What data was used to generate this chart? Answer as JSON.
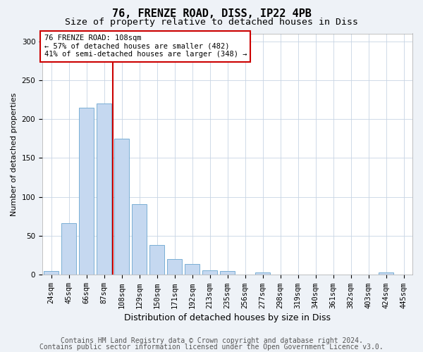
{
  "title1": "76, FRENZE ROAD, DISS, IP22 4PB",
  "title2": "Size of property relative to detached houses in Diss",
  "xlabel": "Distribution of detached houses by size in Diss",
  "ylabel": "Number of detached properties",
  "categories": [
    "24sqm",
    "45sqm",
    "66sqm",
    "87sqm",
    "108sqm",
    "129sqm",
    "150sqm",
    "171sqm",
    "192sqm",
    "213sqm",
    "235sqm",
    "256sqm",
    "277sqm",
    "298sqm",
    "319sqm",
    "340sqm",
    "361sqm",
    "382sqm",
    "403sqm",
    "424sqm",
    "445sqm"
  ],
  "values": [
    5,
    66,
    215,
    220,
    175,
    91,
    38,
    20,
    14,
    6,
    5,
    0,
    3,
    0,
    0,
    0,
    0,
    0,
    0,
    3,
    0
  ],
  "bar_color": "#c5d8f0",
  "bar_edge_color": "#7aafd4",
  "vline_color": "#cc0000",
  "annotation_text": "76 FRENZE ROAD: 108sqm\n← 57% of detached houses are smaller (482)\n41% of semi-detached houses are larger (348) →",
  "annotation_box_color": "white",
  "annotation_box_edge_color": "#cc0000",
  "ylim": [
    0,
    310
  ],
  "yticks": [
    0,
    50,
    100,
    150,
    200,
    250,
    300
  ],
  "footer1": "Contains HM Land Registry data © Crown copyright and database right 2024.",
  "footer2": "Contains public sector information licensed under the Open Government Licence v3.0.",
  "bg_color": "#eef2f7",
  "plot_bg_color": "white",
  "grid_color": "#c8d4e4",
  "title1_fontsize": 11,
  "title2_fontsize": 9.5,
  "xlabel_fontsize": 9,
  "ylabel_fontsize": 8,
  "tick_fontsize": 7.5,
  "footer_fontsize": 7,
  "vline_bar_index": 4
}
